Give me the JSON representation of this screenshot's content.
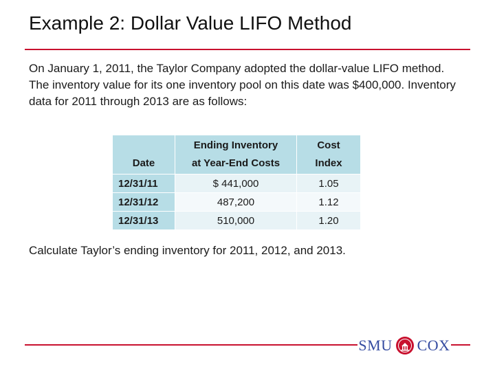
{
  "slide": {
    "title": "Example 2: Dollar Value LIFO Method",
    "intro": "On January 1, 2011, the Taylor Company adopted the dollar-value LIFO method. The inventory value for its one inventory pool on this date was $400,000. Inventory data for 2011 through 2013 are as follows:",
    "question": "Calculate Taylor’s ending inventory for 2011, 2012, and 2013."
  },
  "table": {
    "headers": {
      "date": "Date",
      "inventory_line1": "Ending Inventory",
      "inventory_line2": "at Year-End Costs",
      "cost_line1": "Cost",
      "cost_line2": "Index"
    },
    "rows": [
      {
        "date": "12/31/11",
        "inventory": "$ 441,000",
        "index": "1.05"
      },
      {
        "date": "12/31/12",
        "inventory": "487,200",
        "index": "1.12"
      },
      {
        "date": "12/31/13",
        "inventory": "510,000",
        "index": "1.20"
      }
    ]
  },
  "logo": {
    "left": "SMU",
    "right": "COX",
    "seal_icon": "university-seal-icon",
    "color_red": "#c8102e",
    "color_blue": "#354ca1"
  },
  "colors": {
    "accent_rule": "#c8102e",
    "table_header": "#b7dde6"
  }
}
